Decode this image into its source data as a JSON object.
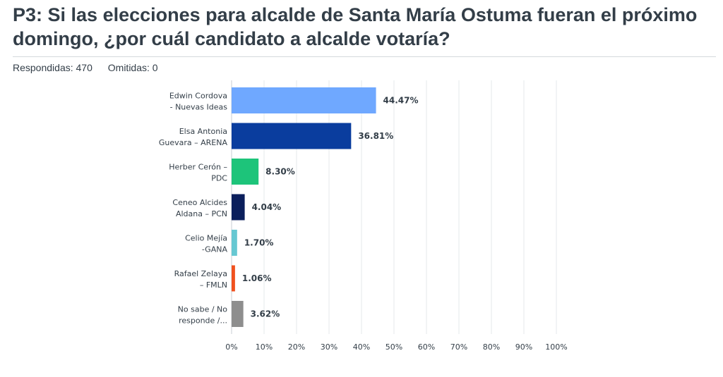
{
  "title": "P3: Si las elecciones para alcalde de Santa María Ostuma fueran el próximo domingo, ¿por cuál candidato a alcalde votaría?",
  "meta": {
    "answered": "Respondidas: 470",
    "skipped": "Omitidas: 0"
  },
  "chart_data": {
    "type": "bar",
    "orientation": "horizontal",
    "categories": [
      [
        "Edwin Cordova",
        "- Nuevas Ideas"
      ],
      [
        "Elsa Antonia",
        "Guevara – ARENA"
      ],
      [
        "Herber Cerón –",
        "PDC"
      ],
      [
        "Ceneo Alcides",
        "Aldana – PCN"
      ],
      [
        "Celio Mejía",
        "-GANA"
      ],
      [
        "Rafael Zelaya",
        "– FMLN"
      ],
      [
        "No sabe / No",
        "responde /..."
      ]
    ],
    "values": [
      44.47,
      36.81,
      8.3,
      4.04,
      1.7,
      1.06,
      3.62
    ],
    "value_labels": [
      "44.47%",
      "36.81%",
      "8.30%",
      "4.04%",
      "1.70%",
      "1.06%",
      "3.62%"
    ],
    "colors": [
      "#6fa8ff",
      "#0a3d9e",
      "#1dc47a",
      "#0b1f5c",
      "#66c8d2",
      "#f0511e",
      "#8e8e8e"
    ],
    "xlim": [
      0,
      100
    ],
    "xticks": [
      "0%",
      "10%",
      "20%",
      "30%",
      "40%",
      "50%",
      "60%",
      "70%",
      "80%",
      "90%",
      "100%"
    ],
    "grid": true
  }
}
